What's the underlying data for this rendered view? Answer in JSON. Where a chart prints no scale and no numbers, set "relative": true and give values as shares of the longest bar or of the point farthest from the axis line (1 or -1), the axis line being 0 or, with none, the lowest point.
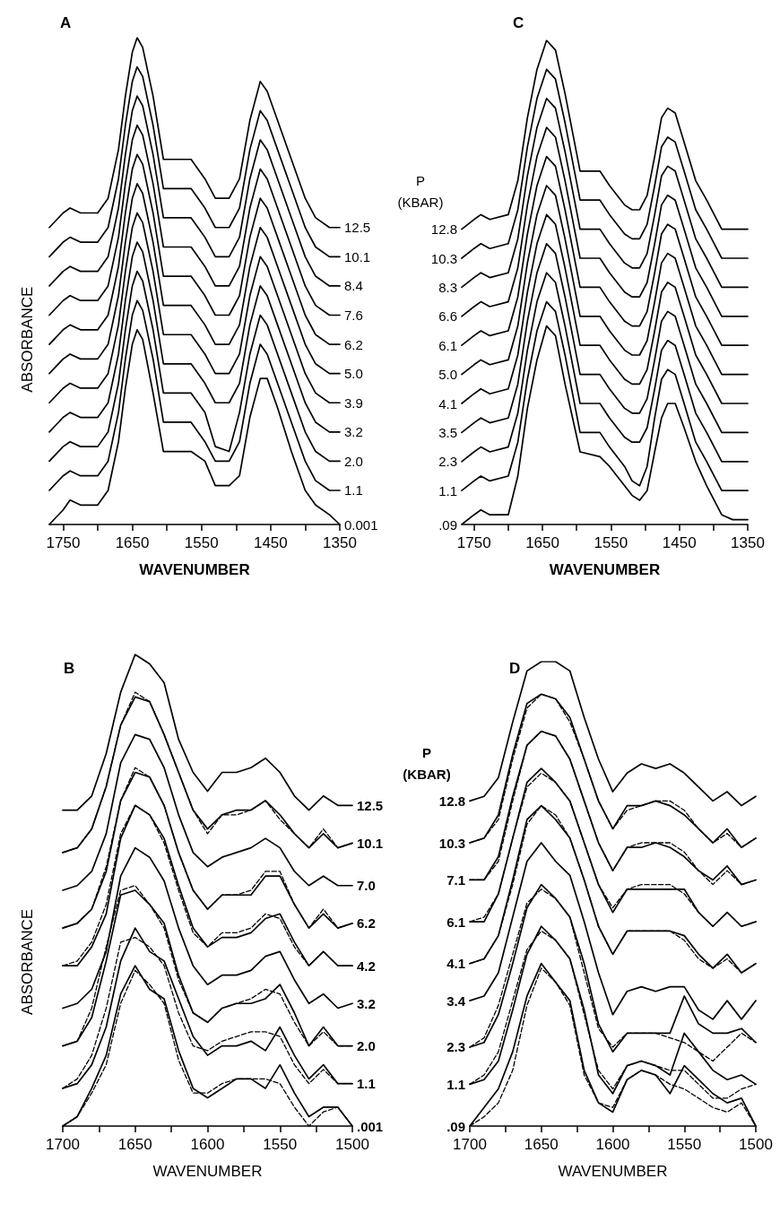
{
  "chart_data": [
    {
      "type": "line",
      "title": "A",
      "xlabel": "WAVENUMBER",
      "ylabel": "ABSORBANCE",
      "relative": true,
      "marker": "none",
      "legend": "right",
      "xlim": [
        1770,
        1350
      ],
      "xticks": [
        1750,
        {
          "value": 1700,
          "label": null
        },
        1650,
        {
          "value": 1600,
          "label": null
        },
        1550,
        {
          "value": 1500,
          "label": null
        },
        1450,
        {
          "value": 1400,
          "label": null
        },
        1350
      ],
      "x": [
        1770,
        1750,
        1740,
        1725,
        1700,
        1685,
        1670,
        1660,
        1650,
        1643,
        1635,
        1620,
        1605,
        1585,
        1565,
        1545,
        1530,
        1510,
        1495,
        1480,
        1465,
        1455,
        1440,
        1420,
        1400,
        1385,
        1365,
        1350
      ],
      "series": [
        {
          "name": "12.5",
          "color": "#000000",
          "values": [
            0.61,
            0.64,
            0.65,
            0.64,
            0.64,
            0.67,
            0.77,
            0.88,
            0.97,
            1.0,
            0.98,
            0.88,
            0.75,
            0.75,
            0.75,
            0.71,
            0.67,
            0.67,
            0.71,
            0.83,
            0.91,
            0.89,
            0.83,
            0.75,
            0.67,
            0.63,
            0.61,
            0.61
          ]
        },
        {
          "name": "10.1",
          "color": "#000000",
          "values": [
            0.55,
            0.58,
            0.59,
            0.58,
            0.58,
            0.61,
            0.71,
            0.82,
            0.91,
            0.94,
            0.92,
            0.82,
            0.69,
            0.69,
            0.69,
            0.65,
            0.61,
            0.61,
            0.65,
            0.77,
            0.85,
            0.83,
            0.77,
            0.69,
            0.61,
            0.57,
            0.55,
            0.55
          ]
        },
        {
          "name": "8.4",
          "color": "#000000",
          "values": [
            0.49,
            0.52,
            0.53,
            0.52,
            0.52,
            0.55,
            0.65,
            0.76,
            0.85,
            0.88,
            0.86,
            0.76,
            0.63,
            0.63,
            0.63,
            0.59,
            0.55,
            0.55,
            0.59,
            0.71,
            0.79,
            0.77,
            0.71,
            0.63,
            0.55,
            0.51,
            0.49,
            0.49
          ]
        },
        {
          "name": "7.6",
          "color": "#000000",
          "values": [
            0.43,
            0.46,
            0.47,
            0.46,
            0.46,
            0.49,
            0.59,
            0.7,
            0.79,
            0.82,
            0.8,
            0.7,
            0.57,
            0.57,
            0.57,
            0.53,
            0.49,
            0.49,
            0.53,
            0.65,
            0.73,
            0.71,
            0.65,
            0.57,
            0.49,
            0.45,
            0.43,
            0.43
          ]
        },
        {
          "name": "6.2",
          "color": "#000000",
          "values": [
            0.37,
            0.4,
            0.41,
            0.4,
            0.4,
            0.43,
            0.53,
            0.64,
            0.73,
            0.76,
            0.74,
            0.64,
            0.51,
            0.51,
            0.51,
            0.47,
            0.43,
            0.43,
            0.47,
            0.59,
            0.67,
            0.65,
            0.59,
            0.51,
            0.43,
            0.39,
            0.37,
            0.37
          ]
        },
        {
          "name": "5.0",
          "color": "#000000",
          "values": [
            0.31,
            0.34,
            0.35,
            0.34,
            0.34,
            0.37,
            0.47,
            0.58,
            0.67,
            0.7,
            0.68,
            0.58,
            0.45,
            0.45,
            0.45,
            0.41,
            0.37,
            0.37,
            0.41,
            0.53,
            0.61,
            0.59,
            0.53,
            0.45,
            0.37,
            0.33,
            0.31,
            0.31
          ]
        },
        {
          "name": "3.9",
          "color": "#000000",
          "values": [
            0.25,
            0.28,
            0.29,
            0.28,
            0.28,
            0.31,
            0.41,
            0.52,
            0.61,
            0.64,
            0.62,
            0.52,
            0.39,
            0.39,
            0.39,
            0.35,
            0.31,
            0.31,
            0.35,
            0.47,
            0.55,
            0.53,
            0.47,
            0.39,
            0.31,
            0.27,
            0.25,
            0.25
          ]
        },
        {
          "name": "3.2",
          "color": "#000000",
          "values": [
            0.19,
            0.22,
            0.23,
            0.22,
            0.22,
            0.25,
            0.35,
            0.46,
            0.55,
            0.58,
            0.56,
            0.46,
            0.33,
            0.33,
            0.33,
            0.29,
            0.25,
            0.25,
            0.29,
            0.41,
            0.49,
            0.47,
            0.41,
            0.33,
            0.25,
            0.21,
            0.19,
            0.19
          ]
        },
        {
          "name": "2.0",
          "color": "#000000",
          "values": [
            0.13,
            0.16,
            0.17,
            0.16,
            0.16,
            0.19,
            0.29,
            0.4,
            0.49,
            0.52,
            0.5,
            0.4,
            0.27,
            0.27,
            0.27,
            0.23,
            0.16,
            0.15,
            0.23,
            0.35,
            0.43,
            0.41,
            0.35,
            0.27,
            0.19,
            0.15,
            0.13,
            0.13
          ]
        },
        {
          "name": "1.1",
          "color": "#000000",
          "values": [
            0.07,
            0.1,
            0.11,
            0.1,
            0.1,
            0.13,
            0.23,
            0.34,
            0.43,
            0.46,
            0.44,
            0.34,
            0.21,
            0.21,
            0.21,
            0.17,
            0.13,
            0.13,
            0.17,
            0.29,
            0.37,
            0.35,
            0.29,
            0.21,
            0.13,
            0.09,
            0.07,
            0.07
          ]
        },
        {
          "name": "0.001",
          "color": "#000000",
          "values": [
            0.0,
            0.03,
            0.05,
            0.04,
            0.04,
            0.07,
            0.17,
            0.28,
            0.37,
            0.4,
            0.38,
            0.27,
            0.15,
            0.15,
            0.15,
            0.13,
            0.08,
            0.08,
            0.1,
            0.22,
            0.3,
            0.3,
            0.24,
            0.15,
            0.07,
            0.04,
            0.02,
            0.0
          ]
        }
      ]
    },
    {
      "type": "line",
      "title": "C",
      "xlabel": "WAVENUMBER",
      "legend_title": "P\n(KBAR)",
      "relative": true,
      "marker": "none",
      "legend": "left",
      "xlim": [
        1768,
        1350
      ],
      "xticks": [
        1750,
        {
          "value": 1700,
          "label": null
        },
        1650,
        {
          "value": 1600,
          "label": null
        },
        1550,
        {
          "value": 1500,
          "label": null
        },
        1450,
        {
          "value": 1400,
          "label": null
        },
        1350
      ],
      "x": [
        1768,
        1750,
        1740,
        1727,
        1700,
        1686,
        1672,
        1658,
        1644,
        1631,
        1617,
        1595,
        1566,
        1552,
        1530,
        1519,
        1508,
        1497,
        1486,
        1476,
        1467,
        1456,
        1443,
        1426,
        1410,
        1388,
        1372,
        1350
      ],
      "series": [
        {
          "name": "12.8",
          "color": "#000000",
          "values": [
            0.61,
            0.63,
            0.64,
            0.63,
            0.64,
            0.71,
            0.84,
            0.94,
            1.0,
            0.98,
            0.89,
            0.73,
            0.73,
            0.7,
            0.66,
            0.65,
            0.65,
            0.68,
            0.76,
            0.84,
            0.86,
            0.85,
            0.79,
            0.71,
            0.67,
            0.61,
            0.61,
            0.61
          ]
        },
        {
          "name": "10.3",
          "color": "#000000",
          "values": [
            0.55,
            0.57,
            0.58,
            0.57,
            0.58,
            0.65,
            0.78,
            0.88,
            0.94,
            0.92,
            0.83,
            0.67,
            0.67,
            0.64,
            0.6,
            0.59,
            0.59,
            0.62,
            0.7,
            0.78,
            0.8,
            0.79,
            0.73,
            0.65,
            0.61,
            0.55,
            0.55,
            0.55
          ]
        },
        {
          "name": "8.3",
          "color": "#000000",
          "values": [
            0.49,
            0.51,
            0.52,
            0.51,
            0.52,
            0.59,
            0.72,
            0.82,
            0.88,
            0.86,
            0.77,
            0.61,
            0.61,
            0.58,
            0.54,
            0.53,
            0.53,
            0.56,
            0.64,
            0.72,
            0.74,
            0.73,
            0.67,
            0.59,
            0.55,
            0.49,
            0.49,
            0.49
          ]
        },
        {
          "name": "6.6",
          "color": "#000000",
          "values": [
            0.43,
            0.45,
            0.46,
            0.45,
            0.46,
            0.53,
            0.66,
            0.76,
            0.82,
            0.8,
            0.71,
            0.55,
            0.55,
            0.52,
            0.48,
            0.47,
            0.47,
            0.5,
            0.58,
            0.66,
            0.68,
            0.67,
            0.61,
            0.53,
            0.49,
            0.43,
            0.43,
            0.43
          ]
        },
        {
          "name": "6.1",
          "color": "#000000",
          "values": [
            0.37,
            0.39,
            0.4,
            0.39,
            0.4,
            0.47,
            0.6,
            0.7,
            0.76,
            0.74,
            0.65,
            0.49,
            0.49,
            0.46,
            0.42,
            0.41,
            0.41,
            0.44,
            0.52,
            0.6,
            0.62,
            0.61,
            0.55,
            0.47,
            0.43,
            0.37,
            0.37,
            0.37
          ]
        },
        {
          "name": "5.0",
          "color": "#000000",
          "values": [
            0.31,
            0.33,
            0.34,
            0.33,
            0.34,
            0.41,
            0.54,
            0.64,
            0.7,
            0.68,
            0.59,
            0.43,
            0.43,
            0.4,
            0.36,
            0.35,
            0.35,
            0.38,
            0.46,
            0.54,
            0.56,
            0.55,
            0.49,
            0.41,
            0.37,
            0.31,
            0.31,
            0.31
          ]
        },
        {
          "name": "4.1",
          "color": "#000000",
          "values": [
            0.25,
            0.27,
            0.28,
            0.27,
            0.28,
            0.35,
            0.48,
            0.58,
            0.64,
            0.62,
            0.53,
            0.37,
            0.37,
            0.34,
            0.3,
            0.29,
            0.29,
            0.32,
            0.4,
            0.48,
            0.5,
            0.49,
            0.43,
            0.35,
            0.31,
            0.25,
            0.25,
            0.25
          ]
        },
        {
          "name": "3.5",
          "color": "#000000",
          "values": [
            0.19,
            0.21,
            0.22,
            0.21,
            0.22,
            0.29,
            0.42,
            0.52,
            0.58,
            0.56,
            0.47,
            0.31,
            0.31,
            0.28,
            0.24,
            0.23,
            0.23,
            0.26,
            0.34,
            0.42,
            0.44,
            0.43,
            0.37,
            0.29,
            0.25,
            0.19,
            0.19,
            0.19
          ]
        },
        {
          "name": "2.3",
          "color": "#000000",
          "values": [
            0.13,
            0.15,
            0.16,
            0.15,
            0.16,
            0.23,
            0.36,
            0.46,
            0.52,
            0.5,
            0.41,
            0.25,
            0.25,
            0.22,
            0.18,
            0.17,
            0.17,
            0.2,
            0.28,
            0.36,
            0.38,
            0.37,
            0.31,
            0.23,
            0.19,
            0.13,
            0.13,
            0.13
          ]
        },
        {
          "name": "1.1",
          "color": "#000000",
          "values": [
            0.07,
            0.09,
            0.1,
            0.09,
            0.1,
            0.17,
            0.3,
            0.4,
            0.46,
            0.44,
            0.35,
            0.19,
            0.19,
            0.16,
            0.12,
            0.09,
            0.08,
            0.12,
            0.22,
            0.3,
            0.32,
            0.31,
            0.25,
            0.17,
            0.13,
            0.07,
            0.07,
            0.07
          ]
        },
        {
          "name": ".09",
          "color": "#000000",
          "values": [
            0.0,
            0.02,
            0.03,
            0.02,
            0.02,
            0.1,
            0.24,
            0.34,
            0.41,
            0.39,
            0.29,
            0.15,
            0.14,
            0.12,
            0.08,
            0.06,
            0.05,
            0.07,
            0.15,
            0.22,
            0.25,
            0.25,
            0.2,
            0.13,
            0.08,
            0.02,
            0.01,
            0.01
          ]
        }
      ]
    },
    {
      "type": "line",
      "title": "B",
      "xlabel": "WAVENUMBER",
      "ylabel": "ABSORBANCE",
      "relative": true,
      "marker": "none",
      "legend": "right",
      "xlim": [
        1700,
        1500
      ],
      "xticks": [
        1700,
        {
          "value": 1675,
          "label": null
        },
        1650,
        {
          "value": 1625,
          "label": null
        },
        1600,
        {
          "value": 1575,
          "label": null
        },
        1550,
        {
          "value": 1525,
          "label": null
        },
        1500
      ],
      "x": [
        1700,
        1690,
        1680,
        1670,
        1660,
        1650,
        1640,
        1630,
        1620,
        1610,
        1600,
        1590,
        1580,
        1570,
        1560,
        1550,
        1540,
        1530,
        1520,
        1510,
        1500
      ],
      "series": [
        {
          "name": "12.5",
          "color": "#000000",
          "values": [
            0.67,
            0.67,
            0.7,
            0.79,
            0.92,
            1.0,
            0.98,
            0.94,
            0.82,
            0.75,
            0.71,
            0.75,
            0.75,
            0.76,
            0.78,
            0.75,
            0.7,
            0.67,
            0.7,
            0.68,
            0.68
          ]
        },
        {
          "name": "10.1",
          "color": "#000000",
          "values": [
            0.58,
            0.59,
            0.63,
            0.72,
            0.85,
            0.91,
            0.9,
            0.83,
            0.75,
            0.67,
            0.63,
            0.66,
            0.67,
            0.67,
            0.69,
            0.66,
            0.62,
            0.59,
            0.62,
            0.59,
            0.6
          ]
        },
        {
          "color": "#000000",
          "line_style": "dashed",
          "values": [
            0.58,
            0.59,
            0.63,
            0.72,
            0.85,
            0.92,
            0.9,
            0.83,
            0.75,
            0.67,
            0.62,
            0.66,
            0.66,
            0.67,
            0.69,
            0.65,
            0.62,
            0.59,
            0.63,
            0.59,
            0.6
          ]
        },
        {
          "name": "7.0",
          "color": "#000000",
          "values": [
            0.5,
            0.51,
            0.54,
            0.62,
            0.77,
            0.83,
            0.82,
            0.76,
            0.66,
            0.58,
            0.55,
            0.57,
            0.58,
            0.59,
            0.61,
            0.59,
            0.54,
            0.51,
            0.53,
            0.51,
            0.51
          ]
        },
        {
          "name": "6.2",
          "color": "#000000",
          "values": [
            0.42,
            0.43,
            0.46,
            0.54,
            0.69,
            0.75,
            0.74,
            0.68,
            0.58,
            0.5,
            0.46,
            0.49,
            0.49,
            0.49,
            0.53,
            0.53,
            0.47,
            0.42,
            0.45,
            0.42,
            0.43
          ]
        },
        {
          "color": "#000000",
          "line_style": "dashed",
          "values": [
            0.42,
            0.43,
            0.46,
            0.55,
            0.69,
            0.76,
            0.74,
            0.68,
            0.58,
            0.5,
            0.46,
            0.49,
            0.49,
            0.5,
            0.54,
            0.54,
            0.47,
            0.42,
            0.46,
            0.42,
            0.43
          ]
        },
        {
          "name": "4.2",
          "color": "#000000",
          "values": [
            0.34,
            0.34,
            0.38,
            0.45,
            0.61,
            0.68,
            0.66,
            0.61,
            0.51,
            0.42,
            0.38,
            0.4,
            0.4,
            0.41,
            0.44,
            0.45,
            0.39,
            0.34,
            0.37,
            0.34,
            0.34
          ]
        },
        {
          "color": "#000000",
          "line_style": "dashed",
          "values": [
            0.34,
            0.35,
            0.39,
            0.47,
            0.62,
            0.68,
            0.66,
            0.6,
            0.5,
            0.41,
            0.38,
            0.41,
            0.41,
            0.42,
            0.45,
            0.44,
            0.38,
            0.34,
            0.37,
            0.34,
            0.34
          ]
        },
        {
          "name": "3.2",
          "color": "#000000",
          "values": [
            0.25,
            0.26,
            0.29,
            0.37,
            0.53,
            0.59,
            0.57,
            0.52,
            0.42,
            0.34,
            0.3,
            0.32,
            0.32,
            0.33,
            0.36,
            0.37,
            0.31,
            0.26,
            0.28,
            0.25,
            0.26
          ]
        },
        {
          "name": "2.0",
          "color": "#000000",
          "values": [
            0.17,
            0.18,
            0.23,
            0.35,
            0.49,
            0.5,
            0.47,
            0.43,
            0.32,
            0.24,
            0.22,
            0.25,
            0.26,
            0.26,
            0.27,
            0.3,
            0.24,
            0.17,
            0.21,
            0.17,
            0.17
          ]
        },
        {
          "color": "#000000",
          "line_style": "dashed",
          "values": [
            0.17,
            0.18,
            0.25,
            0.38,
            0.5,
            0.51,
            0.47,
            0.42,
            0.31,
            0.24,
            0.22,
            0.25,
            0.26,
            0.27,
            0.29,
            0.28,
            0.22,
            0.17,
            0.2,
            0.17,
            0.17
          ]
        },
        {
          "name": "1.1",
          "color": "#000000",
          "values": [
            0.08,
            0.09,
            0.13,
            0.21,
            0.35,
            0.42,
            0.37,
            0.35,
            0.27,
            0.19,
            0.15,
            0.17,
            0.17,
            0.18,
            0.16,
            0.21,
            0.15,
            0.1,
            0.13,
            0.09,
            0.09
          ]
        },
        {
          "color": "#000000",
          "line_style": "dashed",
          "values": [
            0.08,
            0.1,
            0.15,
            0.25,
            0.39,
            0.4,
            0.38,
            0.34,
            0.24,
            0.17,
            0.16,
            0.18,
            0.19,
            0.2,
            0.2,
            0.19,
            0.13,
            0.09,
            0.12,
            0.09,
            0.09
          ]
        },
        {
          "name": ".001",
          "color": "#000000",
          "values": [
            0.0,
            0.02,
            0.08,
            0.15,
            0.28,
            0.34,
            0.29,
            0.27,
            0.16,
            0.08,
            0.06,
            0.08,
            0.1,
            0.1,
            0.08,
            0.13,
            0.07,
            0.02,
            0.04,
            0.04,
            0.0
          ]
        },
        {
          "color": "#000000",
          "line_style": "dashed",
          "values": [
            0.0,
            0.02,
            0.07,
            0.13,
            0.26,
            0.33,
            0.3,
            0.26,
            0.14,
            0.07,
            0.07,
            0.09,
            0.1,
            0.1,
            0.1,
            0.09,
            0.04,
            0.0,
            0.03,
            0.04,
            0.0
          ]
        }
      ]
    },
    {
      "type": "line",
      "title": "D",
      "xlabel": "WAVENUMBER",
      "legend_title": "P\n(KBAR)",
      "relative": true,
      "marker": "none",
      "legend": "left",
      "xlim": [
        1700,
        1500
      ],
      "xticks": [
        1700,
        {
          "value": 1675,
          "label": null
        },
        1650,
        {
          "value": 1625,
          "label": null
        },
        1600,
        {
          "value": 1575,
          "label": null
        },
        1550,
        {
          "value": 1525,
          "label": null
        },
        1500
      ],
      "x": [
        1700,
        1690,
        1680,
        1670,
        1660,
        1650,
        1640,
        1630,
        1620,
        1610,
        1600,
        1590,
        1580,
        1570,
        1560,
        1550,
        1540,
        1530,
        1520,
        1510,
        1500
      ],
      "series": [
        {
          "name": "12.8",
          "color": "#000000",
          "values": [
            0.7,
            0.71,
            0.75,
            0.87,
            0.98,
            1.0,
            1.0,
            0.98,
            0.88,
            0.79,
            0.72,
            0.76,
            0.78,
            0.77,
            0.78,
            0.76,
            0.73,
            0.7,
            0.72,
            0.69,
            0.71
          ]
        },
        {
          "name": "10.3",
          "color": "#000000",
          "values": [
            0.61,
            0.62,
            0.67,
            0.8,
            0.91,
            0.93,
            0.92,
            0.88,
            0.79,
            0.7,
            0.64,
            0.69,
            0.69,
            0.7,
            0.69,
            0.67,
            0.64,
            0.61,
            0.64,
            0.6,
            0.62
          ]
        },
        {
          "color": "#000000",
          "line_style": "dashed",
          "values": [
            0.61,
            0.62,
            0.66,
            0.79,
            0.9,
            0.93,
            0.92,
            0.87,
            0.79,
            0.7,
            0.64,
            0.68,
            0.69,
            0.7,
            0.7,
            0.68,
            0.64,
            0.61,
            0.63,
            0.6,
            0.62
          ]
        },
        {
          "name": "7.1",
          "color": "#000000",
          "values": [
            0.53,
            0.53,
            0.58,
            0.71,
            0.82,
            0.85,
            0.84,
            0.79,
            0.7,
            0.61,
            0.55,
            0.6,
            0.6,
            0.61,
            0.6,
            0.58,
            0.55,
            0.53,
            0.56,
            0.52,
            0.53
          ]
        },
        {
          "color": "#000000",
          "line_style": "dashed",
          "values": [
            0.53,
            0.53,
            0.57,
            0.7,
            0.82,
            0.85,
            0.84,
            0.79,
            0.7,
            0.61,
            0.55,
            0.6,
            0.61,
            0.61,
            0.61,
            0.59,
            0.55,
            0.52,
            0.55,
            0.52,
            0.53
          ]
        },
        {
          "name": "6.1",
          "color": "#000000",
          "values": [
            0.44,
            0.44,
            0.5,
            0.62,
            0.74,
            0.77,
            0.74,
            0.7,
            0.61,
            0.52,
            0.46,
            0.51,
            0.51,
            0.51,
            0.51,
            0.51,
            0.46,
            0.43,
            0.46,
            0.43,
            0.44
          ]
        },
        {
          "color": "#000000",
          "line_style": "dashed",
          "values": [
            0.44,
            0.45,
            0.5,
            0.62,
            0.73,
            0.76,
            0.74,
            0.7,
            0.61,
            0.52,
            0.47,
            0.51,
            0.52,
            0.52,
            0.52,
            0.5,
            0.46,
            0.43,
            0.46,
            0.43,
            0.44
          ]
        },
        {
          "name": "4.1",
          "color": "#000000",
          "values": [
            0.35,
            0.36,
            0.41,
            0.53,
            0.66,
            0.69,
            0.66,
            0.62,
            0.53,
            0.43,
            0.37,
            0.42,
            0.42,
            0.42,
            0.42,
            0.41,
            0.37,
            0.34,
            0.37,
            0.33,
            0.35
          ]
        },
        {
          "color": "#000000",
          "line_style": "dashed",
          "values": [
            0.35,
            0.36,
            0.41,
            0.52,
            0.65,
            0.69,
            0.67,
            0.62,
            0.53,
            0.43,
            0.37,
            0.42,
            0.42,
            0.42,
            0.42,
            0.4,
            0.36,
            0.34,
            0.36,
            0.33,
            0.35
          ]
        },
        {
          "name": "3.4",
          "color": "#000000",
          "values": [
            0.27,
            0.28,
            0.33,
            0.45,
            0.57,
            0.61,
            0.57,
            0.54,
            0.44,
            0.33,
            0.24,
            0.29,
            0.3,
            0.29,
            0.3,
            0.3,
            0.25,
            0.23,
            0.27,
            0.23,
            0.27
          ]
        },
        {
          "name": "2.3",
          "color": "#000000",
          "values": [
            0.17,
            0.18,
            0.24,
            0.35,
            0.47,
            0.52,
            0.49,
            0.45,
            0.35,
            0.22,
            0.16,
            0.2,
            0.2,
            0.2,
            0.2,
            0.28,
            0.22,
            0.2,
            0.2,
            0.21,
            0.18
          ]
        },
        {
          "color": "#000000",
          "line_style": "dashed",
          "values": [
            0.17,
            0.19,
            0.26,
            0.37,
            0.48,
            0.51,
            0.49,
            0.45,
            0.33,
            0.21,
            0.17,
            0.2,
            0.2,
            0.2,
            0.19,
            0.18,
            0.16,
            0.14,
            0.17,
            0.2,
            0.18
          ]
        },
        {
          "name": "1.1",
          "color": "#000000",
          "values": [
            0.09,
            0.1,
            0.14,
            0.25,
            0.37,
            0.43,
            0.4,
            0.36,
            0.25,
            0.11,
            0.07,
            0.13,
            0.14,
            0.13,
            0.11,
            0.2,
            0.16,
            0.12,
            0.1,
            0.11,
            0.09
          ]
        },
        {
          "color": "#000000",
          "line_style": "dashed",
          "values": [
            0.09,
            0.11,
            0.16,
            0.27,
            0.38,
            0.42,
            0.4,
            0.36,
            0.24,
            0.12,
            0.08,
            0.13,
            0.14,
            0.13,
            0.12,
            0.12,
            0.09,
            0.06,
            0.06,
            0.08,
            0.09
          ]
        },
        {
          "name": ".09",
          "color": "#000000",
          "values": [
            0.0,
            0.04,
            0.08,
            0.16,
            0.28,
            0.35,
            0.31,
            0.27,
            0.12,
            0.05,
            0.03,
            0.1,
            0.12,
            0.11,
            0.07,
            0.13,
            0.1,
            0.07,
            0.05,
            0.06,
            0.0
          ]
        },
        {
          "color": "#000000",
          "line_style": "dashed",
          "values": [
            0.0,
            0.02,
            0.05,
            0.12,
            0.26,
            0.34,
            0.31,
            0.26,
            0.11,
            0.05,
            0.04,
            0.1,
            0.12,
            0.11,
            0.09,
            0.08,
            0.06,
            0.04,
            0.03,
            0.05,
            0.0
          ]
        }
      ]
    }
  ]
}
